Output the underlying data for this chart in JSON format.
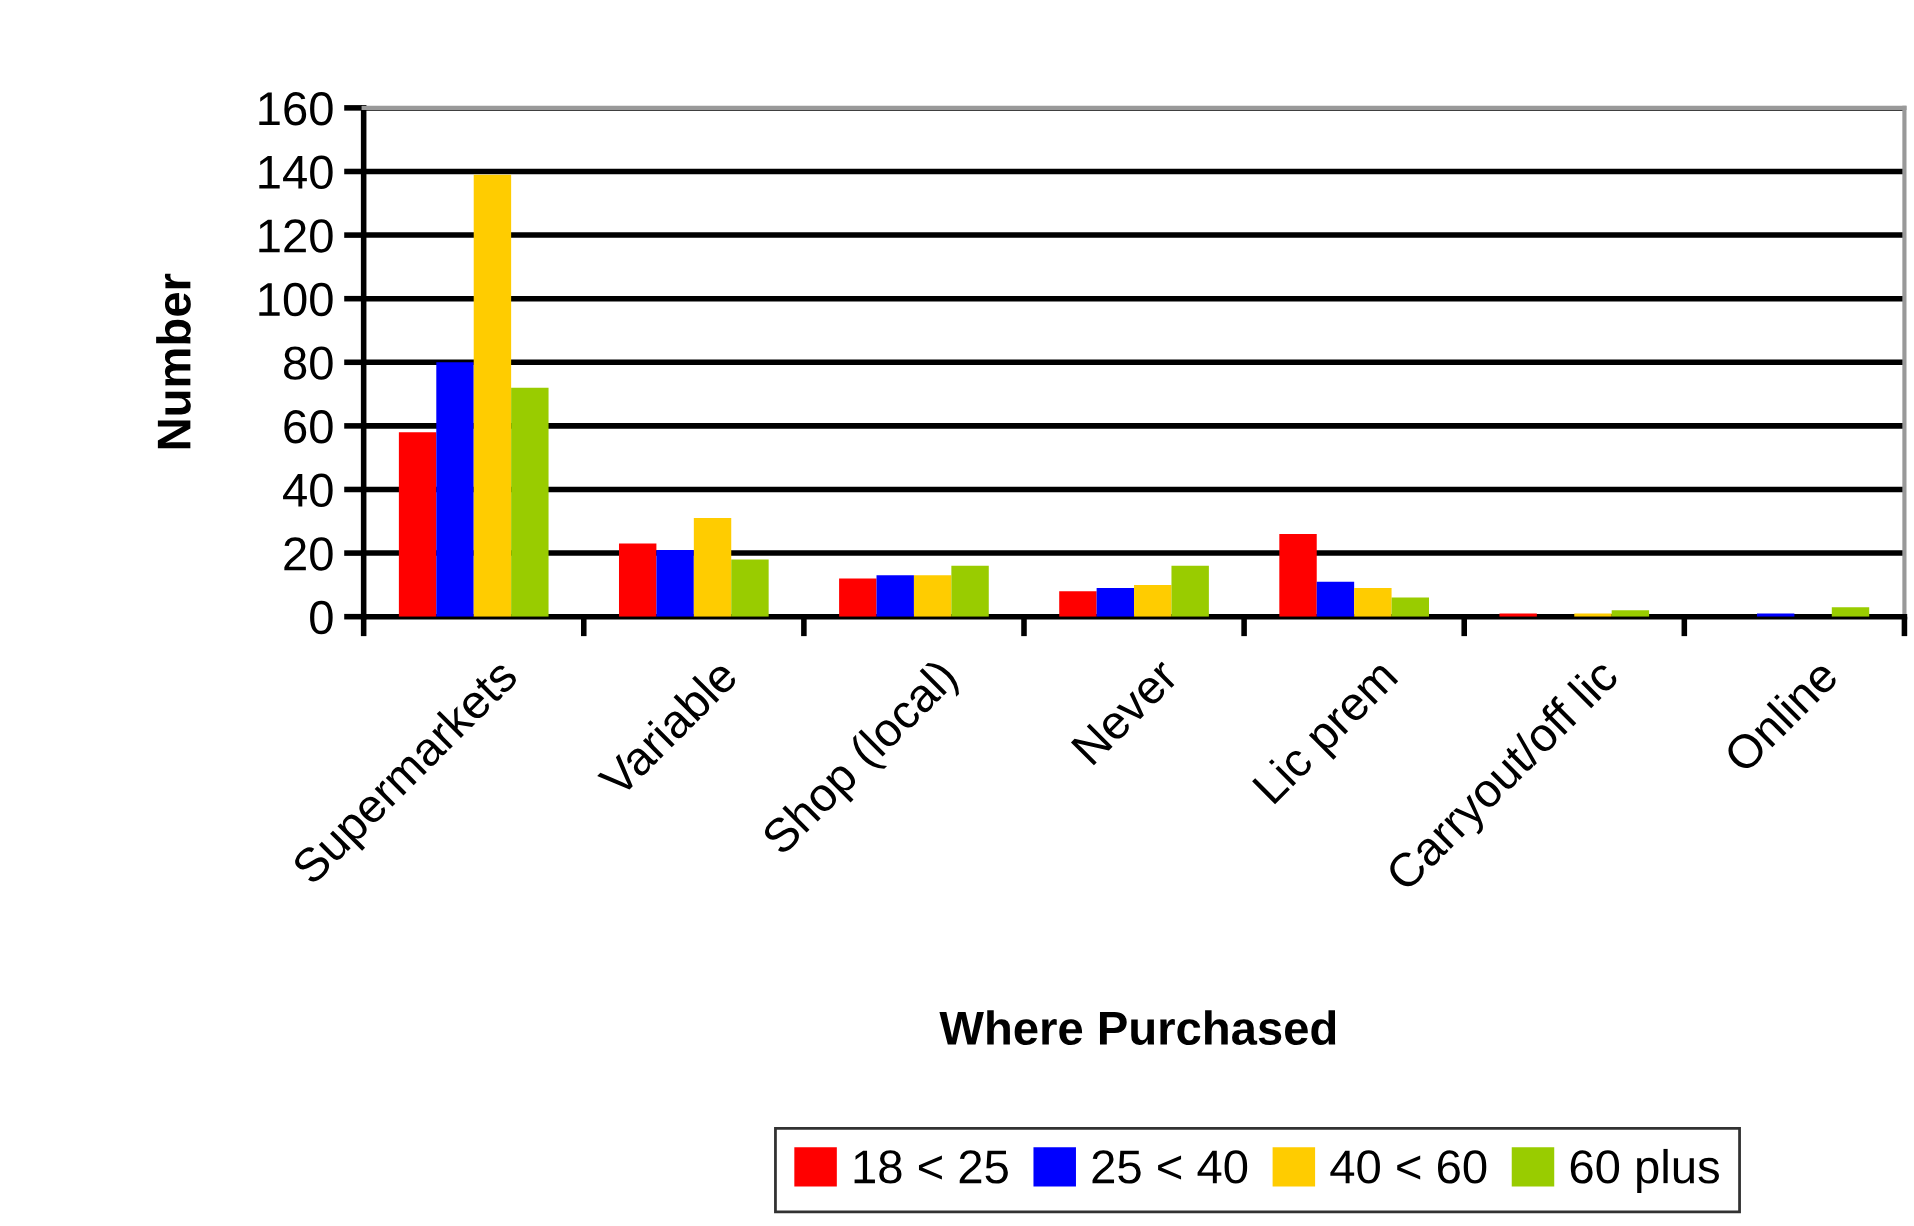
{
  "chart_data": {
    "type": "bar",
    "xlabel": "Where Purchased",
    "ylabel": "Number",
    "categories": [
      "Supermarkets",
      "Variable",
      "Shop (local)",
      "Never",
      "Lic prem",
      "Carryout/off lic",
      "Online"
    ],
    "series": [
      {
        "name": "18 < 25",
        "color": "#ff0000",
        "values": [
          58,
          23,
          12,
          8,
          26,
          1,
          0
        ]
      },
      {
        "name": "25 < 40",
        "color": "#0000ff",
        "values": [
          80,
          21,
          13,
          9,
          11,
          0,
          1
        ]
      },
      {
        "name": "40 < 60",
        "color": "#ffcc00",
        "values": [
          139,
          31,
          13,
          10,
          9,
          1,
          0
        ]
      },
      {
        "name": "60 plus",
        "color": "#99cc00",
        "values": [
          72,
          18,
          16,
          16,
          6,
          2,
          3
        ]
      }
    ],
    "ylim": [
      0,
      160
    ],
    "yticks": [
      0,
      20,
      40,
      60,
      80,
      100,
      120,
      140,
      160
    ],
    "grid": "y",
    "legend": "bottom"
  }
}
